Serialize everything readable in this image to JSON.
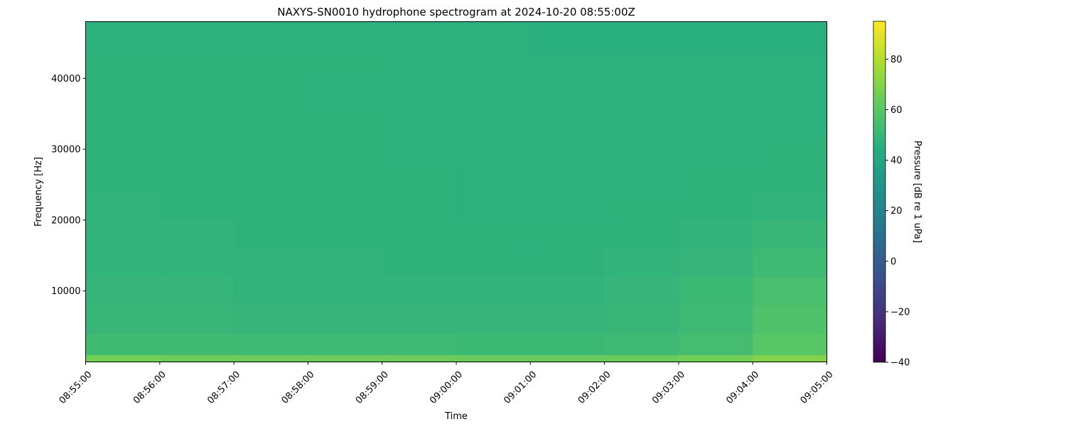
{
  "chart_data": {
    "type": "heatmap",
    "title": "NAXYS-SN0010 hydrophone spectrogram at 2024-10-20 08:55:00Z",
    "xlabel": "Time",
    "ylabel": "Frequency [Hz]",
    "colorbar_label": "Pressure [dB re 1 uPa]",
    "colormap": "viridis",
    "x_ticks": [
      "08:55:00",
      "08:56:00",
      "08:57:00",
      "08:58:00",
      "08:59:00",
      "09:00:00",
      "09:01:00",
      "09:02:00",
      "09:03:00",
      "09:04:00",
      "09:05:00"
    ],
    "y_ticks": [
      10000,
      20000,
      30000,
      40000
    ],
    "ylim": [
      0,
      48000
    ],
    "color_ticks": [
      -40,
      -20,
      0,
      20,
      40,
      60,
      80
    ],
    "clim": [
      -40,
      95
    ],
    "grid": false,
    "time_bins_start": [
      "08:55:00",
      "08:56:00",
      "08:57:00",
      "08:58:00",
      "08:59:00",
      "09:00:00",
      "09:01:00",
      "09:02:00",
      "09:03:00",
      "09:04:00"
    ],
    "freq_bin_edges": [
      0,
      1000,
      4000,
      8000,
      12000,
      16000,
      20000,
      24000,
      28000,
      32000,
      36000,
      40000,
      44000,
      48000
    ],
    "values_db": [
      [
        66,
        65,
        65,
        65,
        65,
        64,
        64,
        64,
        66,
        70
      ],
      [
        53,
        53,
        52,
        52,
        52,
        51,
        51,
        52,
        54,
        60
      ],
      [
        50,
        50,
        49,
        49,
        49,
        49,
        49,
        50,
        52,
        57
      ],
      [
        49,
        49,
        48,
        48,
        48,
        48,
        48,
        49,
        51,
        55
      ],
      [
        48,
        48,
        48,
        48,
        47,
        47,
        47,
        48,
        49,
        52
      ],
      [
        48,
        48,
        47,
        47,
        47,
        47,
        47,
        47,
        48,
        50
      ],
      [
        48,
        47,
        47,
        47,
        47,
        46,
        46,
        47,
        47,
        48
      ],
      [
        47,
        47,
        47,
        47,
        47,
        46,
        46,
        46,
        47,
        47
      ],
      [
        47,
        47,
        47,
        47,
        46,
        46,
        46,
        46,
        46,
        47
      ],
      [
        47,
        47,
        47,
        47,
        46,
        46,
        46,
        46,
        46,
        46
      ],
      [
        47,
        47,
        47,
        46,
        46,
        46,
        46,
        46,
        46,
        46
      ],
      [
        47,
        47,
        47,
        47,
        46,
        46,
        46,
        46,
        46,
        46
      ],
      [
        46,
        46,
        46,
        46,
        46,
        46,
        45,
        45,
        45,
        45
      ]
    ]
  }
}
